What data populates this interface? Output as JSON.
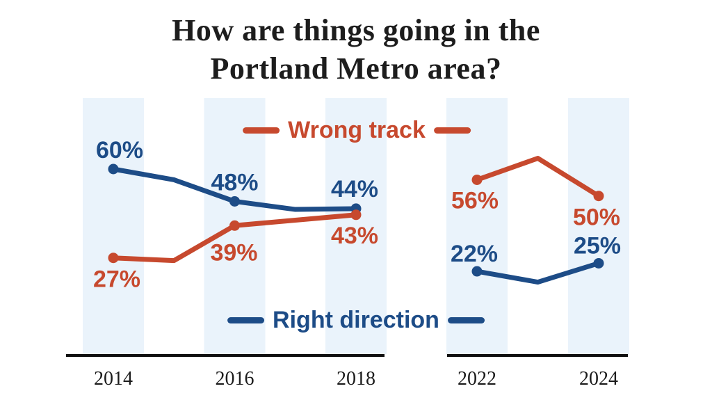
{
  "title": {
    "line1": "How are things going in the",
    "line2": "Portland Metro area?"
  },
  "legend": {
    "wrong_track": "Wrong track",
    "right_direction": "Right direction"
  },
  "colors": {
    "wrong_track": "#C7492E",
    "right_direction": "#1D4C87",
    "band": "#EAF3FB",
    "axis": "#0F0F0F",
    "tick_text": "#1B1B1B",
    "title_text": "#1D1D1D"
  },
  "chart_data": {
    "type": "line",
    "title": "How are things going in the Portland Metro area?",
    "y_unit": "%",
    "grid": "off",
    "panels": [
      {
        "x_ticks": [
          "2014",
          "2016",
          "2018"
        ],
        "band_years": [
          2014,
          2016,
          2018
        ]
      },
      {
        "x_ticks": [
          "2022",
          "2024"
        ],
        "band_years": [
          2022,
          2024
        ]
      }
    ],
    "series": [
      {
        "id": "wrong_track",
        "name": "Wrong track",
        "segments": [
          {
            "panel": 0,
            "points": [
              {
                "year": 2014,
                "value": 27,
                "label": "27%"
              },
              {
                "year": 2015,
                "value": 26,
                "estimated": true
              },
              {
                "year": 2016,
                "value": 39,
                "label": "39%"
              },
              {
                "year": 2017,
                "value": 41,
                "estimated": true
              },
              {
                "year": 2018,
                "value": 43,
                "label": "43%"
              }
            ]
          },
          {
            "panel": 1,
            "points": [
              {
                "year": 2022,
                "value": 56,
                "label": "56%"
              },
              {
                "year": 2023,
                "value": 64,
                "estimated": true
              },
              {
                "year": 2024,
                "value": 50,
                "label": "50%"
              }
            ]
          }
        ]
      },
      {
        "id": "right_direction",
        "name": "Right direction",
        "segments": [
          {
            "panel": 0,
            "points": [
              {
                "year": 2014,
                "value": 60,
                "label": "60%"
              },
              {
                "year": 2015,
                "value": 56,
                "estimated": true
              },
              {
                "year": 2016,
                "value": 48,
                "label": "48%"
              },
              {
                "year": 2017,
                "value": 45,
                "estimated": true
              },
              {
                "year": 2018,
                "value": 44,
                "label": "44%"
              }
            ]
          },
          {
            "panel": 1,
            "points": [
              {
                "year": 2022,
                "value": 22,
                "label": "22%"
              },
              {
                "year": 2023,
                "value": 18,
                "estimated": true
              },
              {
                "year": 2024,
                "value": 25,
                "label": "25%"
              }
            ]
          }
        ]
      }
    ]
  }
}
